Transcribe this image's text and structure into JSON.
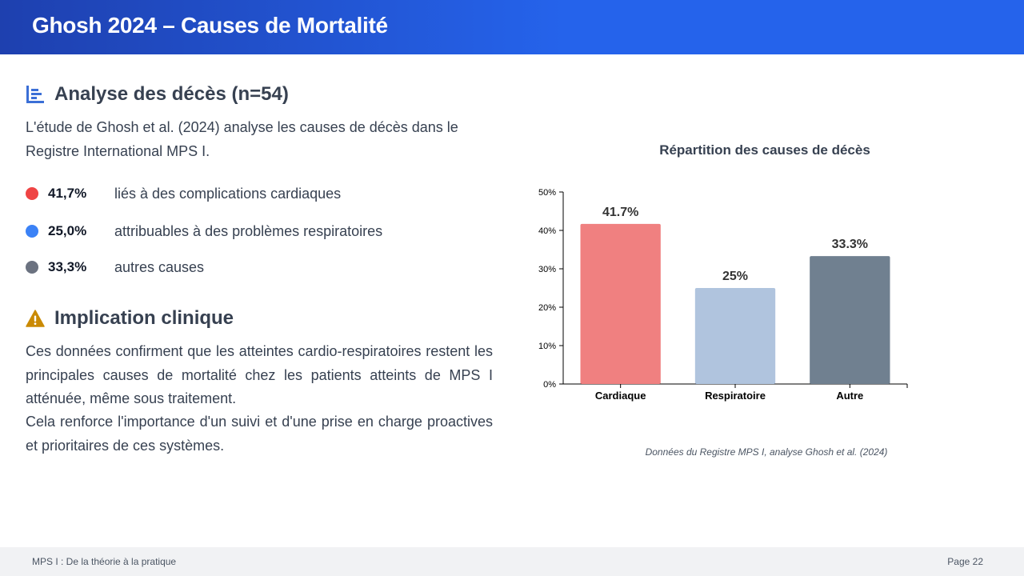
{
  "header": {
    "title": "Ghosh 2024 – Causes de Mortalité"
  },
  "analysis": {
    "title": "Analyse des décès (n=54)",
    "icon": "bar-chart-icon",
    "intro": "L'étude de Ghosh et al. (2024) analyse les causes de décès dans le Registre International MPS I.",
    "stats": [
      {
        "percent": "41,7%",
        "label": "liés à des complications cardiaques",
        "color": "#ef4444"
      },
      {
        "percent": "25,0%",
        "label": "attribuables à des problèmes respiratoires",
        "color": "#3b82f6"
      },
      {
        "percent": "33,3%",
        "label": "autres causes",
        "color": "#6b7280"
      }
    ]
  },
  "implication": {
    "title": "Implication clinique",
    "icon": "warning-icon",
    "icon_color": "#ca8a04",
    "paragraph1": "Ces données confirment que les atteintes cardio-respiratoires restent les principales causes de mortalité chez les patients atteints de MPS I atténuée, même sous traitement.",
    "paragraph2": "Cela renforce l'importance d'un suivi et d'une prise en charge proactives et prioritaires de ces systèmes."
  },
  "chart_title": "Répartition des causes de décès",
  "chart_data": {
    "type": "bar",
    "title": "Répartition des causes de décès",
    "categories": [
      "Cardiaque",
      "Respiratoire",
      "Autre"
    ],
    "values": [
      41.7,
      25,
      33.3
    ],
    "data_labels": [
      "41.7%",
      "25%",
      "33.3%"
    ],
    "colors": [
      "#f08080",
      "#b0c4de",
      "#708090"
    ],
    "xlabel": "",
    "ylabel": "",
    "ylim": [
      0,
      50
    ],
    "yticks": [
      "0%",
      "10%",
      "20%",
      "30%",
      "40%",
      "50%"
    ],
    "grid": false,
    "legend": "none"
  },
  "caption": "Données du Registre MPS I, analyse Ghosh et al. (2024)",
  "footer": {
    "left": "MPS I : De la théorie à la pratique",
    "right": "Page 22"
  }
}
